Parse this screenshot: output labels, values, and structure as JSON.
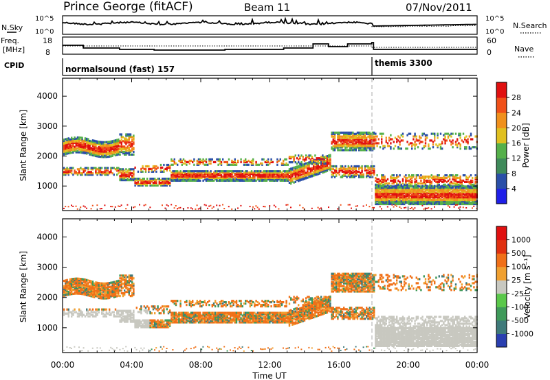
{
  "header": {
    "station": "Prince George (fitACF)",
    "beam": "Beam 11",
    "date": "07/Nov/2011"
  },
  "strip_labels": {
    "nsky": "N.Sky",
    "nsky_ticks": [
      "10^5",
      "10^0"
    ],
    "nsearch": "N.Search",
    "nsearch_ticks": [
      "10^5",
      "10^0"
    ],
    "freq": "Freq.",
    "freq_unit": "[MHz]",
    "freq_ticks": [
      "18",
      "8"
    ],
    "nave": "Nave",
    "nave_ticks": [
      "60",
      "0"
    ],
    "cpid": "CPID",
    "cpid_modes": [
      "normalsound (fast) 157",
      "themis 3300"
    ]
  },
  "chart_data": [
    {
      "type": "heatmap",
      "name": "power",
      "ylabel": "Slant Range [km]",
      "xlabel": "",
      "ylim": [
        180,
        4600
      ],
      "yticks": [
        "1000",
        "2000",
        "3000",
        "4000"
      ],
      "colorbar_label": "Power [dB]",
      "colorbar_ticks": [
        "28",
        "24",
        "20",
        "16",
        "12",
        "8",
        "4"
      ],
      "colors": [
        "#1f1fe8",
        "#2a4fa8",
        "#3f8a5a",
        "#55b04a",
        "#e0c020",
        "#f0901c",
        "#f05018",
        "#e01010"
      ],
      "mode_change_time": "18:00"
    },
    {
      "type": "heatmap",
      "name": "velocity",
      "ylabel": "Slant Range [km]",
      "xlabel": "Time UT",
      "ylim": [
        180,
        4600
      ],
      "yticks": [
        "1000",
        "2000",
        "3000",
        "4000"
      ],
      "xticks": [
        "00:00",
        "04:00",
        "08:00",
        "12:00",
        "16:00",
        "20:00",
        "00:00"
      ],
      "colorbar_label": "Velocity [m s⁻¹]",
      "colorbar_ticks": [
        "1000",
        "500",
        "100",
        "25",
        "-25",
        "-100",
        "-500",
        "-1000"
      ],
      "colors": [
        "#2a3fb0",
        "#3f7a7a",
        "#3f9a5a",
        "#5ac84a",
        "#c8c8c0",
        "#f0a030",
        "#f07018",
        "#e03010",
        "#e01010"
      ],
      "mode_change_time": "18:00"
    }
  ]
}
